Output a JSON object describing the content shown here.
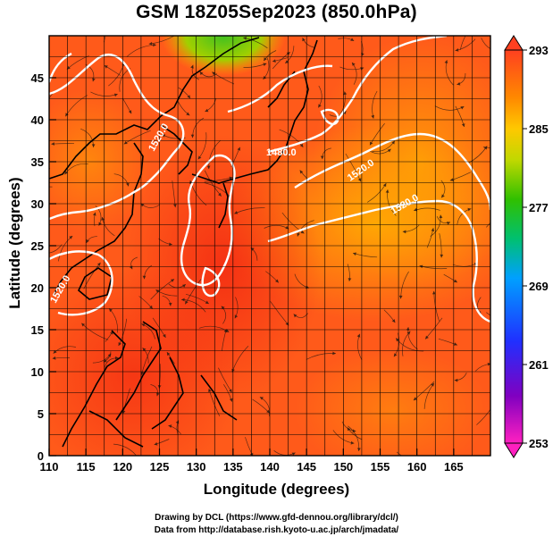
{
  "title": "GSM 18Z05Sep2023 (850.0hPa)",
  "axes": {
    "xlabel": "Longitude (degrees)",
    "ylabel": "Latitude  (degrees)",
    "x_ticks": [
      "110",
      "115",
      "120",
      "125",
      "130",
      "135",
      "140",
      "145",
      "150",
      "155",
      "160",
      "165"
    ],
    "y_ticks": [
      "0",
      "5",
      "10",
      "15",
      "20",
      "25",
      "30",
      "35",
      "40",
      "45"
    ],
    "xlim": [
      110,
      170
    ],
    "ylim": [
      0,
      50
    ]
  },
  "colorbar": {
    "ticks": [
      "293",
      "285",
      "277",
      "269",
      "261",
      "253"
    ],
    "min": 253,
    "max": 293,
    "colors": [
      "#ff1a8c",
      "#c000c0",
      "#2020ff",
      "#00b0ff",
      "#00d070",
      "#40d000",
      "#c0e000",
      "#ffd000",
      "#ff8c00",
      "#ff4000",
      "#ff3010"
    ]
  },
  "contour_labels": [
    "1480.0",
    "1520.0",
    "1520.0",
    "1520.0",
    "1520.0"
  ],
  "credits": {
    "line1": "Drawing by DCL (https://www.gfd-dennou.org/library/dcl/)",
    "line2": "Data from http://database.rish.kyoto-u.ac.jp/arch/jmadata/"
  }
}
